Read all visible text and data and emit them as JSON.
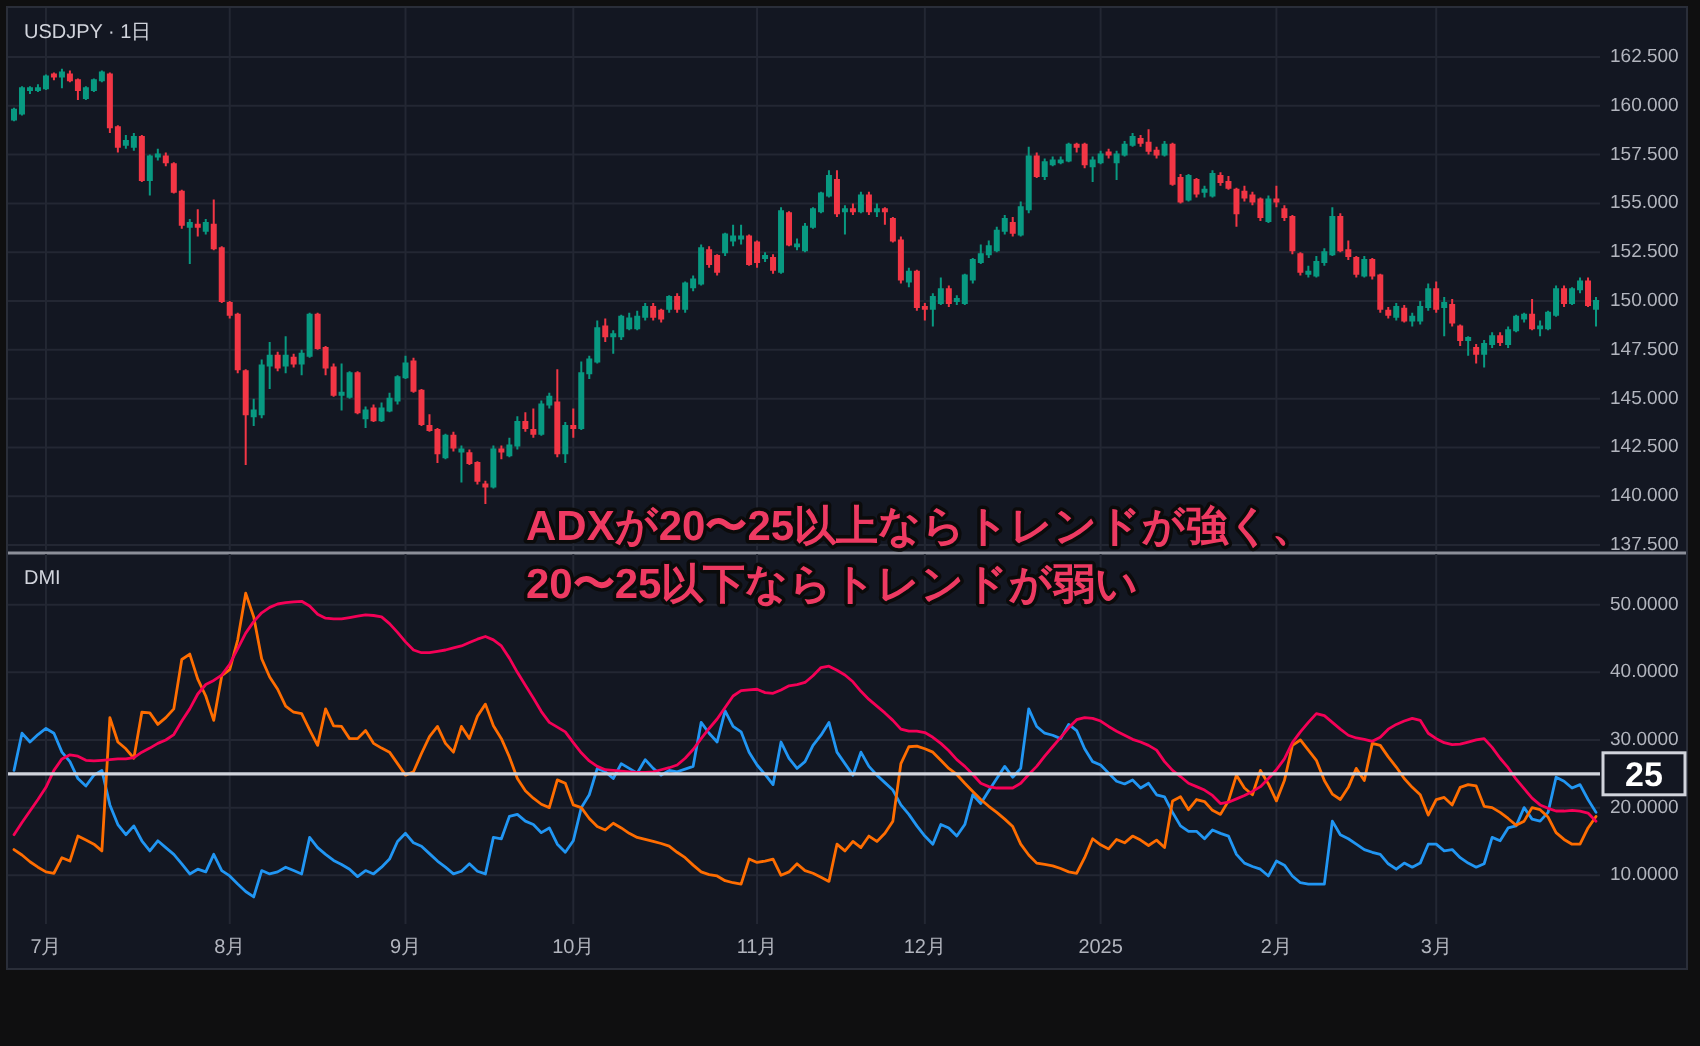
{
  "chart_data": [
    {
      "type": "candlestick",
      "title": "USDJPY · 1日",
      "grid": true,
      "ylim": [
        137.25,
        164.8
      ],
      "yticks": [
        {
          "value": 137.5,
          "label": "137.500"
        },
        {
          "value": 140,
          "label": "140.000"
        },
        {
          "value": 142.5,
          "label": "142.500"
        },
        {
          "value": 145,
          "label": "145.000"
        },
        {
          "value": 147.5,
          "label": "147.500"
        },
        {
          "value": 150,
          "label": "150.000"
        },
        {
          "value": 152.5,
          "label": "152.500"
        },
        {
          "value": 155,
          "label": "155.000"
        },
        {
          "value": 157.5,
          "label": "157.500"
        },
        {
          "value": 160,
          "label": "160.000"
        },
        {
          "value": 162.5,
          "label": "162.500"
        }
      ],
      "categories": [
        null,
        null,
        null,
        null,
        null,
        null,
        null,
        null,
        null,
        null,
        null,
        null,
        null,
        null,
        null,
        null,
        null,
        null,
        null,
        null,
        null,
        null,
        null,
        null,
        null,
        null,
        null,
        null,
        null,
        null,
        null,
        null,
        null,
        null,
        null,
        null,
        null,
        null,
        null,
        null,
        null,
        null,
        null,
        null,
        null,
        null,
        null,
        null,
        null,
        null,
        null,
        null,
        null,
        null,
        null,
        null,
        null,
        null,
        null,
        null,
        null,
        null,
        null,
        null,
        null,
        null,
        null,
        null,
        null,
        null,
        null,
        null,
        null,
        null,
        null,
        null,
        null,
        null,
        null,
        null,
        null,
        null,
        null,
        null,
        null,
        null,
        null,
        null,
        null,
        null,
        null,
        null,
        null,
        null,
        null,
        null,
        null,
        null,
        null,
        null,
        null,
        null,
        null,
        null,
        null,
        null,
        null,
        null,
        null,
        null,
        null,
        null,
        null,
        null,
        null,
        null,
        null,
        null,
        null,
        null,
        null,
        null,
        null,
        null,
        null,
        null,
        null,
        null,
        null,
        null,
        null,
        null,
        null,
        null,
        null,
        null,
        null,
        null,
        null,
        null,
        null,
        null,
        null,
        null,
        null,
        null,
        null,
        null,
        null,
        null,
        null,
        null,
        null,
        null,
        null,
        null,
        null,
        null,
        null,
        null,
        null,
        null,
        null,
        null,
        null,
        null,
        null,
        null,
        null,
        null,
        null,
        null,
        null,
        null,
        null,
        null,
        null,
        null,
        null,
        null,
        null,
        null,
        null,
        null,
        null,
        null,
        null,
        null,
        null,
        null,
        null,
        null,
        null,
        null,
        null,
        null,
        null,
        null,
        null
      ],
      "ohlc": [
        [
          159.3,
          159.9,
          159.2,
          159.8
        ],
        [
          159.6,
          161.0,
          159.5,
          160.9
        ],
        [
          160.8,
          161.0,
          160.6,
          160.9
        ],
        [
          160.8,
          161.1,
          160.7,
          160.9
        ],
        [
          160.9,
          161.6,
          160.8,
          161.5
        ],
        [
          161.6,
          161.7,
          161.3,
          161.5
        ],
        [
          161.5,
          161.9,
          160.9,
          161.7
        ],
        [
          161.6,
          161.8,
          161.2,
          161.3
        ],
        [
          161.3,
          161.4,
          160.3,
          160.8
        ],
        [
          160.4,
          161.0,
          160.3,
          160.9
        ],
        [
          160.8,
          161.4,
          160.7,
          161.3
        ],
        [
          161.3,
          161.8,
          161.2,
          161.7
        ],
        [
          161.6,
          161.7,
          158.6,
          158.9
        ],
        [
          158.9,
          159.0,
          157.6,
          157.9
        ],
        [
          158.0,
          158.5,
          157.8,
          158.2
        ],
        [
          157.9,
          158.6,
          157.7,
          158.4
        ],
        [
          158.4,
          158.5,
          156.1,
          156.2
        ],
        [
          156.2,
          157.5,
          155.4,
          157.4
        ],
        [
          157.4,
          157.8,
          157.2,
          157.5
        ],
        [
          157.4,
          157.6,
          156.9,
          157.1
        ],
        [
          157.0,
          157.1,
          155.5,
          155.6
        ],
        [
          155.6,
          155.7,
          153.7,
          153.9
        ],
        [
          153.8,
          154.2,
          151.9,
          154.0
        ],
        [
          153.9,
          154.7,
          153.3,
          153.8
        ],
        [
          153.6,
          154.2,
          153.4,
          154.0
        ],
        [
          153.9,
          155.2,
          152.6,
          152.7
        ],
        [
          152.7,
          152.8,
          149.9,
          150.0
        ],
        [
          149.9,
          150.0,
          149.1,
          149.3
        ],
        [
          149.3,
          149.4,
          146.3,
          146.5
        ],
        [
          146.4,
          146.5,
          141.6,
          144.2
        ],
        [
          144.1,
          145.0,
          143.6,
          144.4
        ],
        [
          144.2,
          147.0,
          144.0,
          146.7
        ],
        [
          146.7,
          147.9,
          145.5,
          147.2
        ],
        [
          147.2,
          147.4,
          146.4,
          146.6
        ],
        [
          146.7,
          148.2,
          146.3,
          147.2
        ],
        [
          147.1,
          147.3,
          146.6,
          146.8
        ],
        [
          146.8,
          147.5,
          146.2,
          147.3
        ],
        [
          147.2,
          149.4,
          147.1,
          149.3
        ],
        [
          149.3,
          149.4,
          147.5,
          147.6
        ],
        [
          147.6,
          147.7,
          146.2,
          146.6
        ],
        [
          146.6,
          146.8,
          145.1,
          145.2
        ],
        [
          145.2,
          146.8,
          144.4,
          145.3
        ],
        [
          145.1,
          146.4,
          145.0,
          146.3
        ],
        [
          146.3,
          146.4,
          144.2,
          144.3
        ],
        [
          144.0,
          144.6,
          143.5,
          144.4
        ],
        [
          144.5,
          144.7,
          143.8,
          143.9
        ],
        [
          143.9,
          144.8,
          143.8,
          144.5
        ],
        [
          144.4,
          145.3,
          144.3,
          145.0
        ],
        [
          144.9,
          146.2,
          144.7,
          146.1
        ],
        [
          146.1,
          147.2,
          146.0,
          146.8
        ],
        [
          146.9,
          147.1,
          145.3,
          145.4
        ],
        [
          145.4,
          145.5,
          143.6,
          143.7
        ],
        [
          143.6,
          144.2,
          143.3,
          143.4
        ],
        [
          143.4,
          143.5,
          141.7,
          142.2
        ],
        [
          142.0,
          143.2,
          141.9,
          143.1
        ],
        [
          143.1,
          143.3,
          142.3,
          142.5
        ],
        [
          142.3,
          142.6,
          140.7,
          142.4
        ],
        [
          142.2,
          142.4,
          141.6,
          141.7
        ],
        [
          141.7,
          141.8,
          140.6,
          140.8
        ],
        [
          140.6,
          140.8,
          139.6,
          140.5
        ],
        [
          140.5,
          142.6,
          140.4,
          142.4
        ],
        [
          142.4,
          142.6,
          141.9,
          142.3
        ],
        [
          142.1,
          143.0,
          142.0,
          142.6
        ],
        [
          142.6,
          144.1,
          142.4,
          143.8
        ],
        [
          143.8,
          144.3,
          143.3,
          143.5
        ],
        [
          143.4,
          144.5,
          143.0,
          143.2
        ],
        [
          143.2,
          144.9,
          143.1,
          144.7
        ],
        [
          144.7,
          145.3,
          144.5,
          145.1
        ],
        [
          144.8,
          146.5,
          142.0,
          142.2
        ],
        [
          142.2,
          143.8,
          141.7,
          143.6
        ],
        [
          143.6,
          144.5,
          143.0,
          143.5
        ],
        [
          143.5,
          146.9,
          143.4,
          146.3
        ],
        [
          146.3,
          147.2,
          146.0,
          147.0
        ],
        [
          146.9,
          149.0,
          146.8,
          148.6
        ],
        [
          148.7,
          149.1,
          147.9,
          148.2
        ],
        [
          148.2,
          148.5,
          147.3,
          148.3
        ],
        [
          148.2,
          149.3,
          148.0,
          149.2
        ],
        [
          148.6,
          149.4,
          148.5,
          149.1
        ],
        [
          148.6,
          149.5,
          148.5,
          149.2
        ],
        [
          149.2,
          149.9,
          149.0,
          149.7
        ],
        [
          149.7,
          149.9,
          149.0,
          149.2
        ],
        [
          149.5,
          149.6,
          148.9,
          149.1
        ],
        [
          149.6,
          150.3,
          149.4,
          150.2
        ],
        [
          150.2,
          150.4,
          149.4,
          149.6
        ],
        [
          149.6,
          151.0,
          149.4,
          150.9
        ],
        [
          150.7,
          151.3,
          150.5,
          151.1
        ],
        [
          150.9,
          152.9,
          150.8,
          152.7
        ],
        [
          152.6,
          152.8,
          151.7,
          151.9
        ],
        [
          152.3,
          152.4,
          151.3,
          151.5
        ],
        [
          152.5,
          153.5,
          152.3,
          153.4
        ],
        [
          153.1,
          153.9,
          152.8,
          153.3
        ],
        [
          153.2,
          153.9,
          152.9,
          153.3
        ],
        [
          153.3,
          153.4,
          151.8,
          151.9
        ],
        [
          153.0,
          153.1,
          151.7,
          152.0
        ],
        [
          152.2,
          152.5,
          152.0,
          152.3
        ],
        [
          152.2,
          152.4,
          151.4,
          151.6
        ],
        [
          151.5,
          154.8,
          151.4,
          154.6
        ],
        [
          154.5,
          154.6,
          152.8,
          152.9
        ],
        [
          152.8,
          153.2,
          152.6,
          152.9
        ],
        [
          152.6,
          154.0,
          152.5,
          153.8
        ],
        [
          153.8,
          154.8,
          153.7,
          154.7
        ],
        [
          154.6,
          155.6,
          154.5,
          155.5
        ],
        [
          155.4,
          156.7,
          155.3,
          156.4
        ],
        [
          156.2,
          156.7,
          154.3,
          154.5
        ],
        [
          154.6,
          154.9,
          153.4,
          154.7
        ],
        [
          154.7,
          155.0,
          154.4,
          154.6
        ],
        [
          154.6,
          155.6,
          154.5,
          155.4
        ],
        [
          155.4,
          155.6,
          154.4,
          154.6
        ],
        [
          154.6,
          155.0,
          154.3,
          154.7
        ],
        [
          154.7,
          154.8,
          153.9,
          154.6
        ],
        [
          154.2,
          154.3,
          153.0,
          153.1
        ],
        [
          153.1,
          153.3,
          150.9,
          151.1
        ],
        [
          151.0,
          151.7,
          150.7,
          151.5
        ],
        [
          151.5,
          151.6,
          149.5,
          149.7
        ],
        [
          149.7,
          149.9,
          149.0,
          149.6
        ],
        [
          149.6,
          150.4,
          148.7,
          150.2
        ],
        [
          149.9,
          151.2,
          149.8,
          150.6
        ],
        [
          150.6,
          150.8,
          149.7,
          149.9
        ],
        [
          150.0,
          150.3,
          149.8,
          150.1
        ],
        [
          149.9,
          151.4,
          149.8,
          151.3
        ],
        [
          151.1,
          152.2,
          150.9,
          152.1
        ],
        [
          152.0,
          152.9,
          151.9,
          152.4
        ],
        [
          152.4,
          153.1,
          152.2,
          152.8
        ],
        [
          152.6,
          153.8,
          152.5,
          153.6
        ],
        [
          153.6,
          154.4,
          153.4,
          154.2
        ],
        [
          154.0,
          154.3,
          153.3,
          153.5
        ],
        [
          153.4,
          155.1,
          153.3,
          154.8
        ],
        [
          154.7,
          157.9,
          154.5,
          157.4
        ],
        [
          157.4,
          157.6,
          156.3,
          156.4
        ],
        [
          156.4,
          157.3,
          156.2,
          157.1
        ],
        [
          157.0,
          157.4,
          156.9,
          157.2
        ],
        [
          157.1,
          157.4,
          157.0,
          157.2
        ],
        [
          157.2,
          158.1,
          157.1,
          158.0
        ],
        [
          158.0,
          158.1,
          157.6,
          157.9
        ],
        [
          158.0,
          158.1,
          156.8,
          157.0
        ],
        [
          156.9,
          157.4,
          156.1,
          157.2
        ],
        [
          157.1,
          157.7,
          157.0,
          157.5
        ],
        [
          157.6,
          157.8,
          157.3,
          157.5
        ],
        [
          157.1,
          157.7,
          156.2,
          157.5
        ],
        [
          157.5,
          158.2,
          157.4,
          158.0
        ],
        [
          158.0,
          158.6,
          157.9,
          158.4
        ],
        [
          158.3,
          158.5,
          157.9,
          158.1
        ],
        [
          158.1,
          158.8,
          157.5,
          157.7
        ],
        [
          157.7,
          157.9,
          157.3,
          157.5
        ],
        [
          157.5,
          158.2,
          157.4,
          158.0
        ],
        [
          158.0,
          158.1,
          155.9,
          156.0
        ],
        [
          156.3,
          156.5,
          155.0,
          155.1
        ],
        [
          155.2,
          156.5,
          155.1,
          156.4
        ],
        [
          156.2,
          156.3,
          155.3,
          155.5
        ],
        [
          155.6,
          155.9,
          155.3,
          155.7
        ],
        [
          155.4,
          156.7,
          155.3,
          156.5
        ],
        [
          156.4,
          156.6,
          155.9,
          156.1
        ],
        [
          156.1,
          156.4,
          155.7,
          155.8
        ],
        [
          155.7,
          155.8,
          153.8,
          154.5
        ],
        [
          155.6,
          155.9,
          155.1,
          155.3
        ],
        [
          155.4,
          155.6,
          154.9,
          155.1
        ],
        [
          155.2,
          155.3,
          154.1,
          154.3
        ],
        [
          154.1,
          155.4,
          154.0,
          155.2
        ],
        [
          155.2,
          155.9,
          154.8,
          155.1
        ],
        [
          154.7,
          154.9,
          154.1,
          154.3
        ],
        [
          154.3,
          154.4,
          152.4,
          152.6
        ],
        [
          152.4,
          152.5,
          151.3,
          151.5
        ],
        [
          151.4,
          151.8,
          151.2,
          151.5
        ],
        [
          151.3,
          152.3,
          151.2,
          152.0
        ],
        [
          152.0,
          152.7,
          151.8,
          152.5
        ],
        [
          152.4,
          154.8,
          152.3,
          154.3
        ],
        [
          154.3,
          154.5,
          152.5,
          152.6
        ],
        [
          152.6,
          153.1,
          152.1,
          152.3
        ],
        [
          152.2,
          152.3,
          151.2,
          151.4
        ],
        [
          151.3,
          152.3,
          151.2,
          152.1
        ],
        [
          152.1,
          152.2,
          151.1,
          151.3
        ],
        [
          151.3,
          151.4,
          149.4,
          149.6
        ],
        [
          149.5,
          149.7,
          149.1,
          149.3
        ],
        [
          149.2,
          149.9,
          149.0,
          149.7
        ],
        [
          149.6,
          149.8,
          148.9,
          149.0
        ],
        [
          149.0,
          149.4,
          148.7,
          149.2
        ],
        [
          149.0,
          150.0,
          148.8,
          149.7
        ],
        [
          149.7,
          150.9,
          149.5,
          150.6
        ],
        [
          150.6,
          151.0,
          149.4,
          149.6
        ],
        [
          149.7,
          150.2,
          148.2,
          149.9
        ],
        [
          149.8,
          150.1,
          148.7,
          148.9
        ],
        [
          148.7,
          148.8,
          147.7,
          148.0
        ],
        [
          148.0,
          148.2,
          147.2,
          148.1
        ],
        [
          147.6,
          147.8,
          146.8,
          147.3
        ],
        [
          147.3,
          148.0,
          146.6,
          147.8
        ],
        [
          147.8,
          148.4,
          147.6,
          148.2
        ],
        [
          148.2,
          148.4,
          147.7,
          147.9
        ],
        [
          147.8,
          148.7,
          147.6,
          148.5
        ],
        [
          148.5,
          149.3,
          148.4,
          149.2
        ],
        [
          149.1,
          149.4,
          148.9,
          149.3
        ],
        [
          149.3,
          150.1,
          148.5,
          148.6
        ],
        [
          148.6,
          149.0,
          148.2,
          148.7
        ],
        [
          148.6,
          149.5,
          148.5,
          149.4
        ],
        [
          149.3,
          150.8,
          149.2,
          150.6
        ],
        [
          150.6,
          150.8,
          149.7,
          149.9
        ],
        [
          149.9,
          150.7,
          149.8,
          150.6
        ],
        [
          150.6,
          151.2,
          150.4,
          151.0
        ],
        [
          151.0,
          151.2,
          149.7,
          149.8
        ],
        [
          149.6,
          150.2,
          148.7,
          150.0
        ]
      ]
    },
    {
      "type": "line",
      "title": "DMI",
      "grid": true,
      "ylim": [
        2.8,
        56.9
      ],
      "yticks": [
        {
          "value": 10,
          "label": "10.0000"
        },
        {
          "value": 20,
          "label": "20.0000"
        },
        {
          "value": 30,
          "label": "30.0000"
        },
        {
          "value": 40,
          "label": "40.0000"
        },
        {
          "value": 50,
          "label": "50.0000"
        }
      ],
      "categories": [
        null,
        null,
        null,
        null,
        "7月",
        null,
        null,
        null,
        null,
        null,
        null,
        null,
        null,
        null,
        null,
        null,
        null,
        null,
        null,
        null,
        null,
        null,
        null,
        null,
        null,
        null,
        null,
        "8月",
        null,
        null,
        null,
        null,
        null,
        null,
        null,
        null,
        null,
        null,
        null,
        null,
        null,
        null,
        null,
        null,
        null,
        null,
        null,
        null,
        null,
        "9月",
        null,
        null,
        null,
        null,
        null,
        null,
        null,
        null,
        null,
        null,
        null,
        null,
        null,
        null,
        null,
        null,
        null,
        null,
        null,
        null,
        "10月",
        null,
        null,
        null,
        null,
        null,
        null,
        null,
        null,
        null,
        null,
        null,
        null,
        null,
        null,
        null,
        null,
        null,
        null,
        null,
        null,
        null,
        null,
        "11月",
        null,
        null,
        null,
        null,
        null,
        null,
        null,
        null,
        null,
        null,
        null,
        null,
        null,
        null,
        null,
        null,
        null,
        null,
        null,
        null,
        "12月",
        null,
        null,
        null,
        null,
        null,
        null,
        null,
        null,
        null,
        null,
        null,
        null,
        null,
        null,
        null,
        null,
        null,
        null,
        null,
        null,
        null,
        "2025",
        null,
        null,
        null,
        null,
        null,
        null,
        null,
        null,
        null,
        null,
        null,
        null,
        null,
        null,
        null,
        null,
        null,
        null,
        null,
        null,
        null,
        "2月",
        null,
        null,
        null,
        null,
        null,
        null,
        null,
        null,
        null,
        null,
        null,
        null,
        null,
        null,
        null,
        null,
        null,
        null,
        null,
        "3月",
        null,
        null,
        null,
        null,
        null,
        null,
        null,
        null,
        null,
        null,
        null,
        null,
        null,
        null,
        null,
        null,
        null,
        null,
        null,
        null
      ],
      "series": [
        {
          "color": "#2196f3",
          "values": [
            25.5,
            31.0,
            29.7,
            30.8,
            31.7,
            31.0,
            28.2,
            26.8,
            24.3,
            23.2,
            24.8,
            25.5,
            20.4,
            17.5,
            16.0,
            17.3,
            15.1,
            13.6,
            15.1,
            14.1,
            13.1,
            11.7,
            10.2,
            10.9,
            10.5,
            13.1,
            10.7,
            9.9,
            8.7,
            7.6,
            6.8,
            10.7,
            10.2,
            10.5,
            11.2,
            10.7,
            10.2,
            15.6,
            14.1,
            13.1,
            12.2,
            11.6,
            10.9,
            9.8,
            10.7,
            10.2,
            11.2,
            12.4,
            15.0,
            16.2,
            14.8,
            14.3,
            13.2,
            12.1,
            11.2,
            10.2,
            10.6,
            11.7,
            10.6,
            10.2,
            15.6,
            15.4,
            18.7,
            19.0,
            18.0,
            17.5,
            16.3,
            17.0,
            14.6,
            13.4,
            15.1,
            20.0,
            21.9,
            25.8,
            25.3,
            24.3,
            26.5,
            25.8,
            25.1,
            27.1,
            25.8,
            24.8,
            25.5,
            25.3,
            25.7,
            26.1,
            32.6,
            31.0,
            29.7,
            34.3,
            32.0,
            31.2,
            28.2,
            26.3,
            24.9,
            23.4,
            29.7,
            27.3,
            25.8,
            26.8,
            29.2,
            30.7,
            32.6,
            28.2,
            26.5,
            24.8,
            28.2,
            26.1,
            24.8,
            23.7,
            22.6,
            20.4,
            19.0,
            17.3,
            15.8,
            14.6,
            17.5,
            17.0,
            15.8,
            17.5,
            21.9,
            20.6,
            22.5,
            24.3,
            26.1,
            24.5,
            25.8,
            34.6,
            32.0,
            31.0,
            30.7,
            30.2,
            32.3,
            31.4,
            28.7,
            26.8,
            26.3,
            25.1,
            23.9,
            23.5,
            24.1,
            22.9,
            23.6,
            21.9,
            21.6,
            19.3,
            17.3,
            16.5,
            16.5,
            15.4,
            16.7,
            16.2,
            15.8,
            13.1,
            11.8,
            11.3,
            10.9,
            9.9,
            12.1,
            11.5,
            9.9,
            8.9,
            8.7,
            8.7,
            8.7,
            18.0,
            16.0,
            15.4,
            14.6,
            13.8,
            13.4,
            13.1,
            11.7,
            10.9,
            11.8,
            11.2,
            11.8,
            14.6,
            14.6,
            13.6,
            13.8,
            12.6,
            11.8,
            11.2,
            11.7,
            15.6,
            15.1,
            17.0,
            17.3,
            20.0,
            18.3,
            18.0,
            19.3,
            24.5,
            23.9,
            22.9,
            23.4,
            21.2,
            19.3
          ]
        },
        {
          "color": "#ff6d00",
          "values": [
            13.8,
            13.0,
            12.0,
            11.2,
            10.5,
            10.3,
            12.6,
            12.1,
            15.8,
            15.2,
            14.6,
            13.6,
            33.3,
            29.7,
            28.7,
            27.3,
            34.1,
            34.0,
            32.3,
            33.3,
            34.6,
            41.9,
            42.7,
            39.0,
            36.5,
            32.9,
            39.5,
            40.4,
            44.8,
            51.7,
            48.2,
            42.0,
            39.3,
            37.5,
            35.0,
            34.1,
            33.9,
            31.5,
            29.2,
            34.6,
            32.1,
            32.0,
            30.2,
            30.2,
            31.4,
            29.5,
            28.8,
            28.2,
            26.5,
            24.8,
            25.3,
            28.0,
            30.5,
            32.0,
            29.5,
            28.2,
            32.0,
            30.2,
            33.5,
            35.3,
            32.1,
            30.2,
            27.5,
            24.3,
            22.5,
            21.4,
            20.5,
            20.0,
            24.1,
            23.6,
            20.4,
            20.0,
            18.4,
            17.2,
            16.7,
            17.7,
            17.0,
            16.2,
            15.6,
            15.3,
            15.0,
            14.7,
            14.3,
            13.4,
            12.6,
            11.5,
            10.5,
            10.1,
            9.9,
            9.2,
            8.9,
            8.7,
            12.4,
            11.9,
            12.1,
            12.4,
            10.0,
            10.5,
            11.7,
            10.7,
            10.3,
            9.7,
            9.1,
            14.6,
            13.6,
            15.0,
            14.1,
            15.8,
            15.0,
            16.2,
            18.0,
            26.5,
            29.0,
            29.1,
            28.7,
            28.2,
            27.0,
            25.8,
            24.9,
            23.6,
            22.4,
            21.2,
            20.2,
            19.3,
            18.3,
            17.2,
            14.6,
            13.0,
            11.8,
            11.6,
            11.4,
            11.0,
            10.5,
            10.3,
            12.6,
            15.4,
            14.5,
            13.9,
            15.3,
            14.8,
            15.8,
            15.2,
            14.4,
            15.2,
            14.1,
            21.0,
            21.6,
            19.7,
            21.2,
            20.9,
            19.6,
            19.0,
            21.0,
            24.8,
            22.9,
            21.9,
            25.5,
            23.5,
            21.0,
            24.0,
            29.2,
            30.0,
            28.5,
            27.0,
            24.0,
            22.0,
            21.2,
            23.0,
            25.8,
            24.0,
            29.5,
            29.2,
            27.5,
            26.0,
            24.3,
            23.0,
            21.9,
            18.9,
            21.2,
            21.5,
            20.4,
            23.0,
            23.4,
            23.2,
            20.2,
            20.0,
            19.3,
            18.4,
            17.4,
            18.0,
            20.0,
            19.7,
            18.6,
            16.3,
            15.3,
            14.6,
            14.6,
            17.0,
            18.7
          ]
        },
        {
          "color": "#f50057",
          "values": [
            16.0,
            17.8,
            19.5,
            21.2,
            23.0,
            25.5,
            27.2,
            27.8,
            27.6,
            27.0,
            26.9,
            27.0,
            27.1,
            27.2,
            27.2,
            27.4,
            28.2,
            28.8,
            29.5,
            30.0,
            30.8,
            32.8,
            34.6,
            36.8,
            38.2,
            38.8,
            39.6,
            41.2,
            43.5,
            45.8,
            47.5,
            48.8,
            49.6,
            50.1,
            50.3,
            50.4,
            50.5,
            49.8,
            48.6,
            48.0,
            47.9,
            47.9,
            48.1,
            48.3,
            48.5,
            48.4,
            48.2,
            47.2,
            45.9,
            44.5,
            43.3,
            42.9,
            42.9,
            43.1,
            43.3,
            43.6,
            43.9,
            44.4,
            44.9,
            45.3,
            44.8,
            43.9,
            42.1,
            40.0,
            38.1,
            36.2,
            34.2,
            32.6,
            31.9,
            31.2,
            29.6,
            28.1,
            26.9,
            26.1,
            25.6,
            25.5,
            25.4,
            25.3,
            25.2,
            25.2,
            25.3,
            25.6,
            25.9,
            26.3,
            27.3,
            28.6,
            30.2,
            31.7,
            33.1,
            34.8,
            36.5,
            37.3,
            37.4,
            37.5,
            37.0,
            36.9,
            37.4,
            38.0,
            38.2,
            38.5,
            39.5,
            40.7,
            40.9,
            40.3,
            39.6,
            38.6,
            37.2,
            36.0,
            35.0,
            34.0,
            32.9,
            31.6,
            31.3,
            31.3,
            31.1,
            30.4,
            29.5,
            28.4,
            27.1,
            26.1,
            24.9,
            23.6,
            23.1,
            22.9,
            22.9,
            22.9,
            23.6,
            24.9,
            26.1,
            27.6,
            29.0,
            30.4,
            31.8,
            33.0,
            33.3,
            33.2,
            32.8,
            32.0,
            31.3,
            30.7,
            30.1,
            29.7,
            29.2,
            28.5,
            26.8,
            25.5,
            24.6,
            23.6,
            23.1,
            22.6,
            21.8,
            20.6,
            20.8,
            21.3,
            21.8,
            22.4,
            23.1,
            24.3,
            25.6,
            27.2,
            29.6,
            31.2,
            32.6,
            33.9,
            33.6,
            32.6,
            31.6,
            30.7,
            30.3,
            30.1,
            29.8,
            30.4,
            31.6,
            32.3,
            32.8,
            33.2,
            32.9,
            31.0,
            30.2,
            29.6,
            29.3,
            29.4,
            29.7,
            30.0,
            30.2,
            28.9,
            27.3,
            25.9,
            24.2,
            22.8,
            21.4,
            20.4,
            19.9,
            19.5,
            19.5,
            19.6,
            19.5,
            19.2,
            18.0
          ]
        }
      ],
      "ref_lines": [
        {
          "axis": "y",
          "value": 25,
          "label": "25",
          "color": "#d1d4dc"
        }
      ],
      "annotations": [
        "ADXが20〜25以上ならトレンドが強く、\n20〜25以下ならトレンドが弱い"
      ]
    }
  ]
}
